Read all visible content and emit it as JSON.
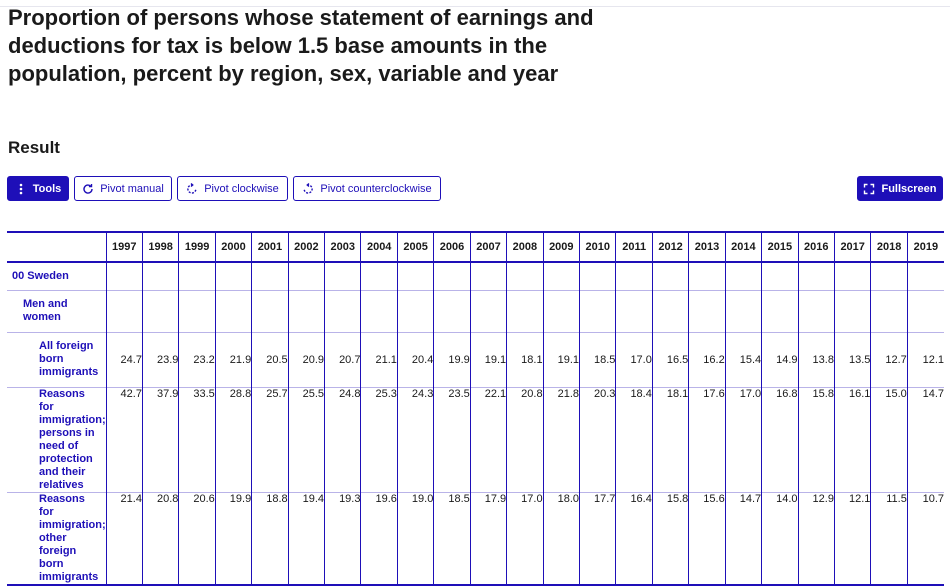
{
  "title": "Proportion of persons whose statement of earnings and deductions for tax is below 1.5 base amounts in the population, percent by region, sex, variable and year",
  "result_heading": "Result",
  "toolbar": {
    "tools_label": "Tools",
    "pivot_manual_label": "Pivot manual",
    "pivot_clockwise_label": "Pivot clockwise",
    "pivot_counterclockwise_label": "Pivot counterclockwise",
    "fullscreen_label": "Fullscreen"
  },
  "table": {
    "years": [
      "1997",
      "1998",
      "1999",
      "2000",
      "2001",
      "2002",
      "2003",
      "2004",
      "2005",
      "2006",
      "2007",
      "2008",
      "2009",
      "2010",
      "2011",
      "2012",
      "2013",
      "2014",
      "2015",
      "2016",
      "2017",
      "2018",
      "2019"
    ],
    "region": "00 Sweden",
    "sex": "Men and women",
    "rows": [
      {
        "label": "All foreign born immigrants",
        "values": [
          "24.7",
          "23.9",
          "23.2",
          "21.9",
          "20.5",
          "20.9",
          "20.7",
          "21.1",
          "20.4",
          "19.9",
          "19.1",
          "18.1",
          "19.1",
          "18.5",
          "17.0",
          "16.5",
          "16.2",
          "15.4",
          "14.9",
          "13.8",
          "13.5",
          "12.7",
          "12.1"
        ]
      },
      {
        "label": "Reasons for immigration; persons in need of protection and their relatives",
        "values": [
          "42.7",
          "37.9",
          "33.5",
          "28.8",
          "25.7",
          "25.5",
          "24.8",
          "25.3",
          "24.3",
          "23.5",
          "22.1",
          "20.8",
          "21.8",
          "20.3",
          "18.4",
          "18.1",
          "17.6",
          "17.0",
          "16.8",
          "15.8",
          "16.1",
          "15.0",
          "14.7"
        ]
      },
      {
        "label": "Reasons for immigration; other foreign born immigrants",
        "values": [
          "21.4",
          "20.8",
          "20.6",
          "19.9",
          "18.8",
          "19.4",
          "19.3",
          "19.6",
          "19.0",
          "18.5",
          "17.9",
          "17.0",
          "18.0",
          "17.7",
          "16.4",
          "15.8",
          "15.6",
          "14.7",
          "14.0",
          "12.9",
          "12.1",
          "11.5",
          "10.7"
        ]
      }
    ]
  },
  "colors": {
    "accent": "#1e0fb8",
    "text": "#1a1a1a"
  }
}
